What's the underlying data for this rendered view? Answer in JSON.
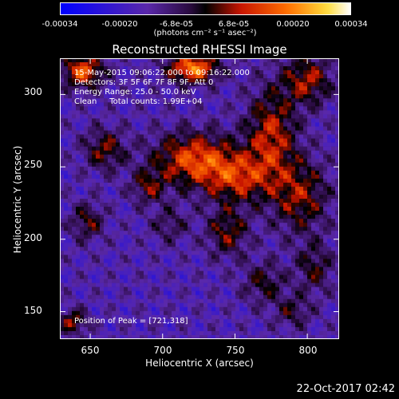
{
  "colorbar": {
    "ticks": [
      "-0.00034",
      "-0.00020",
      "-6.8e-05",
      "6.8e-05",
      "0.00020",
      "0.00034"
    ],
    "tick_values": [
      -0.00034,
      -0.0002,
      -6.8e-05,
      6.8e-05,
      0.0002,
      0.00034
    ],
    "unit_label": "(photons cm⁻² s⁻¹ asec⁻²)",
    "range": [
      -0.00034,
      0.00034
    ]
  },
  "title": "Reconstructed RHESSI Image",
  "info": {
    "line1": "15-May-2015 09:06:22.000 to 09:16:22.000",
    "line2": "Detectors: 3F 5F 6F 7F 8F 9F, Att 0",
    "line3": "Energy Range: 25.0 - 50.0 keV",
    "line4": "Clean     Total counts: 1.99E+04"
  },
  "peak_label": "Position of Peak = [721,318]",
  "timestamp": "22-Oct-2017 02:42",
  "chart_data": {
    "type": "heatmap",
    "title": "Reconstructed RHESSI Image",
    "xlabel": "Heliocentric X (arcsec)",
    "ylabel": "Heliocentric Y (arcsec)",
    "xlim": [
      629,
      822
    ],
    "ylim": [
      131,
      325
    ],
    "xticks": [
      650,
      700,
      750,
      800
    ],
    "yticks": [
      150,
      200,
      250,
      300
    ],
    "peak_position": [
      721,
      318
    ],
    "colormap": "hot-with-blue-negative",
    "color_range": [
      -0.00034,
      0.00034
    ],
    "sources": [
      {
        "x": 721,
        "y": 318,
        "amp": 1.0,
        "sx": 12,
        "sy": 7
      },
      {
        "x": 645,
        "y": 316,
        "amp": 0.85,
        "sx": 10,
        "sy": 8
      },
      {
        "x": 722,
        "y": 255,
        "amp": 0.8,
        "sx": 20,
        "sy": 13
      },
      {
        "x": 752,
        "y": 242,
        "amp": 0.6,
        "sx": 16,
        "sy": 12
      },
      {
        "x": 775,
        "y": 272,
        "amp": 0.65,
        "sx": 12,
        "sy": 22
      },
      {
        "x": 800,
        "y": 310,
        "amp": 0.6,
        "sx": 12,
        "sy": 12
      },
      {
        "x": 795,
        "y": 230,
        "amp": 0.55,
        "sx": 14,
        "sy": 18
      },
      {
        "x": 660,
        "y": 262,
        "amp": 0.5,
        "sx": 10,
        "sy": 10
      },
      {
        "x": 745,
        "y": 205,
        "amp": 0.5,
        "sx": 10,
        "sy": 12
      },
      {
        "x": 648,
        "y": 212,
        "amp": 0.45,
        "sx": 8,
        "sy": 9
      },
      {
        "x": 690,
        "y": 236,
        "amp": 0.45,
        "sx": 8,
        "sy": 8
      },
      {
        "x": 770,
        "y": 170,
        "amp": 0.4,
        "sx": 10,
        "sy": 10
      },
      {
        "x": 805,
        "y": 180,
        "amp": 0.4,
        "sx": 9,
        "sy": 12
      },
      {
        "x": 638,
        "y": 143,
        "amp": 0.55,
        "sx": 7,
        "sy": 6
      },
      {
        "x": 705,
        "y": 210,
        "amp": 0.3,
        "sx": 9,
        "sy": 9
      },
      {
        "x": 790,
        "y": 150,
        "amp": 0.35,
        "sx": 9,
        "sy": 8
      }
    ]
  }
}
